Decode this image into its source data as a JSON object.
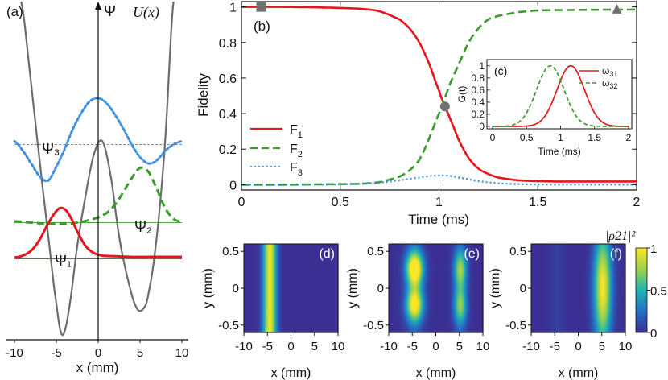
{
  "colors": {
    "red": "#e8141b",
    "green": "#3a9a2c",
    "blue": "#3d8fe0",
    "gray": "#6c6c6c",
    "heat_bg": "#3b2f93",
    "dark": "#111111"
  },
  "chart_data": [
    {
      "id": "a",
      "type": "line",
      "panel_label": "(a)",
      "title": "",
      "xlabel": "x (mm)",
      "ylabel": "Ψ",
      "potential_label": "U(x)",
      "xlim": [
        -10.5,
        10.5
      ],
      "ylim": [
        -1,
        4
      ],
      "xticks": [
        -10,
        -5,
        0,
        5,
        10
      ],
      "series": [
        {
          "name": "U(x)",
          "color": "gray",
          "x": [
            -9.2,
            -8,
            -7,
            -6,
            -5,
            -4.3,
            -3.5,
            -2.5,
            -1.5,
            -0.5,
            0.5,
            1.5,
            2.5,
            3.5,
            4.5,
            5.3,
            6,
            7,
            8,
            9
          ],
          "y": [
            4.3,
            3.0,
            1.8,
            0.65,
            -0.45,
            -0.95,
            -0.55,
            0.45,
            1.25,
            1.9,
            2.1,
            1.55,
            0.6,
            -0.05,
            -0.5,
            -0.55,
            -0.3,
            0.6,
            2.1,
            4.3
          ]
        },
        {
          "name": "Ψ3",
          "label": "Ψ₃",
          "color": "blue",
          "baseline": 2.05,
          "x": [
            -10,
            -9,
            -8,
            -7,
            -6,
            -5,
            -4,
            -3,
            -2,
            -1,
            0,
            1,
            2,
            3,
            4,
            5,
            6,
            7,
            8,
            9,
            10
          ],
          "y": [
            2.1,
            1.95,
            1.75,
            1.55,
            1.48,
            1.7,
            1.98,
            2.3,
            2.55,
            2.73,
            2.78,
            2.7,
            2.52,
            2.3,
            2.05,
            1.85,
            1.75,
            1.8,
            1.95,
            2.05,
            2.1
          ]
        },
        {
          "name": "Ψ2",
          "label": "Ψ₂",
          "color": "green",
          "baseline": 0.82,
          "x": [
            -10,
            -8,
            -6,
            -5,
            -4,
            -2,
            0,
            1,
            2,
            3,
            4,
            5,
            6,
            7,
            8,
            9,
            10
          ],
          "y": [
            0.84,
            0.82,
            0.8,
            0.8,
            0.8,
            0.83,
            0.9,
            0.97,
            1.1,
            1.3,
            1.52,
            1.68,
            1.62,
            1.35,
            1.05,
            0.88,
            0.83
          ]
        },
        {
          "name": "Ψ1",
          "label": "Ψ₁",
          "color": "red",
          "baseline": 0.25,
          "x": [
            -10,
            -9,
            -8,
            -7,
            -6,
            -5,
            -4.3,
            -3.5,
            -2.5,
            -1.5,
            -0.5,
            0.5,
            2,
            4,
            6,
            8,
            10
          ],
          "y": [
            0.27,
            0.3,
            0.38,
            0.55,
            0.8,
            1.0,
            1.05,
            0.95,
            0.68,
            0.45,
            0.34,
            0.3,
            0.29,
            0.28,
            0.28,
            0.28,
            0.28
          ]
        }
      ]
    },
    {
      "id": "b",
      "type": "line",
      "panel_label": "(b)",
      "xlabel": "Time (ms)",
      "ylabel": "Fidelity",
      "xlim": [
        0,
        2
      ],
      "ylim": [
        -0.03,
        1.03
      ],
      "xticks": [
        0,
        0.5,
        1,
        1.5,
        2
      ],
      "yticks": [
        0,
        0.2,
        0.4,
        0.6,
        0.8,
        1
      ],
      "xtick_labels": [
        "0",
        "0.5",
        "1",
        "1.5",
        "2"
      ],
      "ytick_labels": [
        "0",
        "0.2",
        "0.4",
        "0.6",
        "0.8",
        "1"
      ],
      "legend": {
        "position": "left",
        "entries": [
          "F1",
          "F2",
          "F3"
        ]
      },
      "series": [
        {
          "name": "F1",
          "color": "red",
          "style": "solid",
          "x": [
            0,
            0.2,
            0.4,
            0.6,
            0.7,
            0.8,
            0.85,
            0.9,
            0.95,
            1.0,
            1.03,
            1.06,
            1.1,
            1.15,
            1.2,
            1.25,
            1.3,
            1.4,
            1.5,
            1.6,
            1.8,
            2.0
          ],
          "y": [
            1.0,
            1.0,
            0.997,
            0.99,
            0.975,
            0.93,
            0.88,
            0.8,
            0.68,
            0.53,
            0.44,
            0.36,
            0.25,
            0.15,
            0.09,
            0.06,
            0.04,
            0.025,
            0.02,
            0.018,
            0.018,
            0.018
          ]
        },
        {
          "name": "F2",
          "color": "green",
          "style": "dashed",
          "x": [
            0,
            0.2,
            0.4,
            0.6,
            0.7,
            0.8,
            0.85,
            0.9,
            0.95,
            1.0,
            1.03,
            1.06,
            1.1,
            1.15,
            1.2,
            1.25,
            1.3,
            1.4,
            1.5,
            1.6,
            1.8,
            2.0
          ],
          "y": [
            0.0,
            0.0,
            0.002,
            0.005,
            0.015,
            0.045,
            0.08,
            0.14,
            0.26,
            0.4,
            0.49,
            0.58,
            0.68,
            0.8,
            0.88,
            0.93,
            0.95,
            0.97,
            0.98,
            0.982,
            0.984,
            0.985
          ]
        },
        {
          "name": "F3",
          "color": "blue",
          "style": "dotted",
          "x": [
            0,
            0.4,
            0.6,
            0.7,
            0.8,
            0.9,
            0.95,
            1.0,
            1.05,
            1.1,
            1.2,
            1.3,
            1.4,
            1.6,
            2.0
          ],
          "y": [
            0.0,
            0.0,
            0.005,
            0.012,
            0.025,
            0.04,
            0.048,
            0.052,
            0.05,
            0.04,
            0.02,
            0.008,
            0.003,
            0.0,
            0.0
          ]
        }
      ],
      "markers": [
        {
          "shape": "square",
          "x": 0.1,
          "y": 1.0
        },
        {
          "shape": "circle",
          "x": 1.03,
          "y": 0.44
        },
        {
          "shape": "triangle",
          "x": 1.9,
          "y": 0.985
        }
      ]
    },
    {
      "id": "c",
      "type": "line",
      "panel_label": "(c)",
      "xlabel": "Time (ms)",
      "ylabel": "G(t)",
      "xlim": [
        0,
        2
      ],
      "ylim": [
        0,
        1.05
      ],
      "xticks": [
        0,
        0.5,
        1,
        1.5,
        2
      ],
      "yticks": [
        0,
        0.2,
        0.4,
        0.6,
        0.8,
        1
      ],
      "xtick_labels": [
        "0",
        "0.5",
        "1",
        "1.5",
        "2"
      ],
      "ytick_labels": [
        "0",
        "0.2",
        "0.4",
        "0.6",
        "0.8",
        "1"
      ],
      "legend": {
        "position": "right",
        "entries": [
          "ω31",
          "ω32"
        ]
      },
      "series": [
        {
          "name": "ω31",
          "color": "red",
          "style": "solid",
          "center": 1.15,
          "width": 0.2
        },
        {
          "name": "ω32",
          "color": "green",
          "style": "dashed",
          "center": 0.85,
          "width": 0.2
        }
      ]
    },
    {
      "id": "d",
      "type": "heatmap",
      "panel_label": "(d)",
      "xlabel": "x (mm)",
      "ylabel": "y (mm)",
      "xlim": [
        -10,
        10
      ],
      "ylim": [
        -0.6,
        0.6
      ],
      "xticks": [
        -10,
        -5,
        0,
        5,
        10
      ],
      "yticks": [
        -0.5,
        0,
        0.5
      ],
      "xtick_labels": [
        "-10",
        "-5",
        "0",
        "5",
        "10"
      ],
      "ytick_labels": [
        "-0.5",
        "0",
        "0.5"
      ],
      "blobs": [
        {
          "x": -4.5,
          "y": 0,
          "sx": 1.0,
          "sy": 6.0,
          "amp": 0.95
        }
      ]
    },
    {
      "id": "e",
      "type": "heatmap",
      "panel_label": "(e)",
      "xlabel": "x (mm)",
      "ylabel": "y (mm)",
      "xlim": [
        -10,
        10
      ],
      "ylim": [
        -0.6,
        0.6
      ],
      "xticks": [
        -10,
        -5,
        0,
        5,
        10
      ],
      "yticks": [
        -0.5,
        0,
        0.5
      ],
      "xtick_labels": [
        "-10",
        "-5",
        "0",
        "5",
        "10"
      ],
      "ytick_labels": [
        "-0.5",
        "0",
        "0.5"
      ],
      "blobs": [
        {
          "x": -4.5,
          "y": 0.27,
          "sx": 1.3,
          "sy": 0.16,
          "amp": 0.95
        },
        {
          "x": -4.5,
          "y": -0.23,
          "sx": 1.3,
          "sy": 0.15,
          "amp": 0.8
        },
        {
          "x": -4.5,
          "y": 0.0,
          "sx": 1.2,
          "sy": 0.45,
          "amp": 0.35
        },
        {
          "x": 5.2,
          "y": 0.27,
          "sx": 1.0,
          "sy": 0.18,
          "amp": 0.55
        },
        {
          "x": 5.2,
          "y": -0.25,
          "sx": 1.0,
          "sy": 0.17,
          "amp": 0.5
        },
        {
          "x": 5.2,
          "y": 0.0,
          "sx": 0.9,
          "sy": 0.45,
          "amp": 0.28
        }
      ]
    },
    {
      "id": "f",
      "type": "heatmap",
      "panel_label": "(f)",
      "xlabel": "x (mm)",
      "ylabel": "y (mm)",
      "xlim": [
        -10,
        10
      ],
      "ylim": [
        -0.6,
        0.6
      ],
      "xticks": [
        -10,
        -5,
        0,
        5,
        10
      ],
      "yticks": [
        -0.5,
        0,
        0.5
      ],
      "xtick_labels": [
        "-10",
        "-5",
        "0",
        "5",
        "10"
      ],
      "ytick_labels": [
        "-0.5",
        "0",
        "0.5"
      ],
      "blobs": [
        {
          "x": 5.2,
          "y": 0.0,
          "sx": 1.3,
          "sy": 0.55,
          "amp": 0.98
        },
        {
          "x": -4.5,
          "y": 0.0,
          "sx": 1.2,
          "sy": 3.0,
          "amp": 0.06
        }
      ],
      "colorbar": {
        "label": "|ρ21|²",
        "ticks": [
          0,
          0.5,
          1
        ],
        "tick_labels": [
          "0",
          "0.5",
          "1"
        ]
      }
    }
  ]
}
